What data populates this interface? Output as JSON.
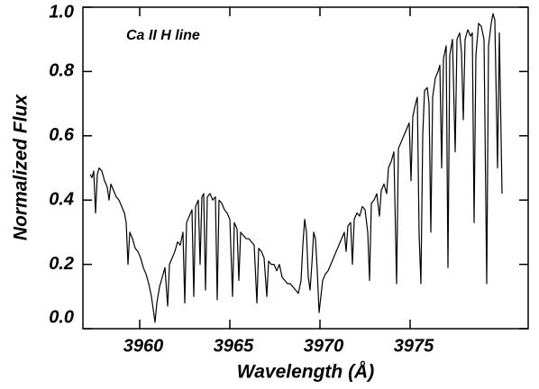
{
  "chart_data": {
    "type": "line",
    "annotation": "Ca II H line",
    "x_label": "Wavelength (Å)",
    "y_label": "Normalized Flux",
    "xlim": [
      3956.85,
      3981.55
    ],
    "xticks": [
      3960,
      3965,
      3970,
      3975
    ],
    "ylim": [
      0,
      1
    ],
    "yticks": [
      {
        "value": 0,
        "label": "0.0"
      },
      0.2,
      0.4,
      0.6,
      0.8,
      {
        "value": 1,
        "label": "1.0"
      }
    ],
    "color": "#000000",
    "x": [
      3957.25,
      3957.35,
      3957.45,
      3957.55,
      3957.65,
      3957.75,
      3957.9,
      3958.05,
      3958.2,
      3958.3,
      3958.4,
      3958.55,
      3958.7,
      3958.85,
      3959.0,
      3959.15,
      3959.25,
      3959.35,
      3959.45,
      3959.6,
      3959.75,
      3959.9,
      3960.05,
      3960.2,
      3960.35,
      3960.5,
      3960.65,
      3960.75,
      3960.85,
      3960.95,
      3961.1,
      3961.25,
      3961.4,
      3961.55,
      3961.65,
      3961.8,
      3961.95,
      3962.1,
      3962.25,
      3962.4,
      3962.5,
      3962.6,
      3962.75,
      3962.9,
      3963.0,
      3963.1,
      3963.25,
      3963.35,
      3963.45,
      3963.55,
      3963.65,
      3963.75,
      3963.9,
      3964.05,
      3964.2,
      3964.3,
      3964.4,
      3964.55,
      3964.7,
      3964.85,
      3965.0,
      3965.15,
      3965.25,
      3965.4,
      3965.5,
      3965.6,
      3965.75,
      3965.9,
      3966.05,
      3966.2,
      3966.35,
      3966.5,
      3966.6,
      3966.75,
      3966.9,
      3967.05,
      3967.15,
      3967.3,
      3967.45,
      3967.6,
      3967.75,
      3967.9,
      3968.05,
      3968.2,
      3968.35,
      3968.5,
      3968.65,
      3968.8,
      3968.95,
      3969.05,
      3969.15,
      3969.25,
      3969.35,
      3969.45,
      3969.55,
      3969.65,
      3969.75,
      3969.85,
      3969.95,
      3970.05,
      3970.15,
      3970.3,
      3970.45,
      3970.6,
      3970.75,
      3970.9,
      3971.05,
      3971.2,
      3971.35,
      3971.45,
      3971.55,
      3971.7,
      3971.8,
      3971.9,
      3972.05,
      3972.2,
      3972.35,
      3972.5,
      3972.65,
      3972.75,
      3972.85,
      3973.0,
      3973.15,
      3973.3,
      3973.4,
      3973.55,
      3973.7,
      3973.8,
      3973.95,
      3974.1,
      3974.25,
      3974.35,
      3974.5,
      3974.65,
      3974.8,
      3974.95,
      3975.05,
      3975.15,
      3975.3,
      3975.4,
      3975.5,
      3975.6,
      3975.7,
      3975.8,
      3975.95,
      3976.05,
      3976.15,
      3976.25,
      3976.4,
      3976.55,
      3976.65,
      3976.75,
      3976.85,
      3977.0,
      3977.1,
      3977.2,
      3977.35,
      3977.5,
      3977.6,
      3977.75,
      3977.85,
      3977.95,
      3978.05,
      3978.2,
      3978.35,
      3978.45,
      3978.55,
      3978.65,
      3978.8,
      3978.95,
      3979.1,
      3979.25,
      3979.35,
      3979.5,
      3979.6,
      3979.7,
      3979.85,
      3979.95,
      3980.1
    ],
    "values": [
      0.48,
      0.47,
      0.49,
      0.36,
      0.48,
      0.5,
      0.49,
      0.46,
      0.44,
      0.4,
      0.45,
      0.43,
      0.41,
      0.4,
      0.38,
      0.36,
      0.33,
      0.2,
      0.3,
      0.28,
      0.25,
      0.24,
      0.22,
      0.19,
      0.17,
      0.14,
      0.1,
      0.06,
      0.02,
      0.08,
      0.13,
      0.16,
      0.19,
      0.07,
      0.2,
      0.22,
      0.24,
      0.27,
      0.26,
      0.3,
      0.08,
      0.33,
      0.35,
      0.37,
      0.1,
      0.38,
      0.4,
      0.2,
      0.41,
      0.42,
      0.12,
      0.41,
      0.42,
      0.4,
      0.41,
      0.09,
      0.4,
      0.39,
      0.37,
      0.36,
      0.34,
      0.1,
      0.33,
      0.31,
      0.15,
      0.3,
      0.29,
      0.28,
      0.28,
      0.27,
      0.26,
      0.08,
      0.25,
      0.24,
      0.22,
      0.1,
      0.21,
      0.2,
      0.2,
      0.18,
      0.2,
      0.16,
      0.15,
      0.14,
      0.14,
      0.13,
      0.12,
      0.11,
      0.15,
      0.26,
      0.34,
      0.3,
      0.16,
      0.12,
      0.2,
      0.3,
      0.28,
      0.18,
      0.05,
      0.1,
      0.15,
      0.17,
      0.18,
      0.2,
      0.22,
      0.24,
      0.26,
      0.28,
      0.3,
      0.24,
      0.32,
      0.33,
      0.2,
      0.34,
      0.36,
      0.35,
      0.38,
      0.37,
      0.3,
      0.15,
      0.39,
      0.4,
      0.42,
      0.35,
      0.43,
      0.45,
      0.42,
      0.5,
      0.52,
      0.55,
      0.14,
      0.56,
      0.58,
      0.6,
      0.62,
      0.64,
      0.46,
      0.66,
      0.7,
      0.72,
      0.29,
      0.14,
      0.6,
      0.74,
      0.75,
      0.7,
      0.3,
      0.72,
      0.78,
      0.8,
      0.82,
      0.5,
      0.84,
      0.88,
      0.19,
      0.85,
      0.9,
      0.55,
      0.9,
      0.92,
      0.86,
      0.65,
      0.9,
      0.93,
      0.91,
      0.92,
      0.33,
      0.85,
      0.95,
      0.94,
      0.9,
      0.14,
      0.88,
      0.95,
      0.98,
      0.96,
      0.5,
      0.92,
      0.42
    ]
  }
}
